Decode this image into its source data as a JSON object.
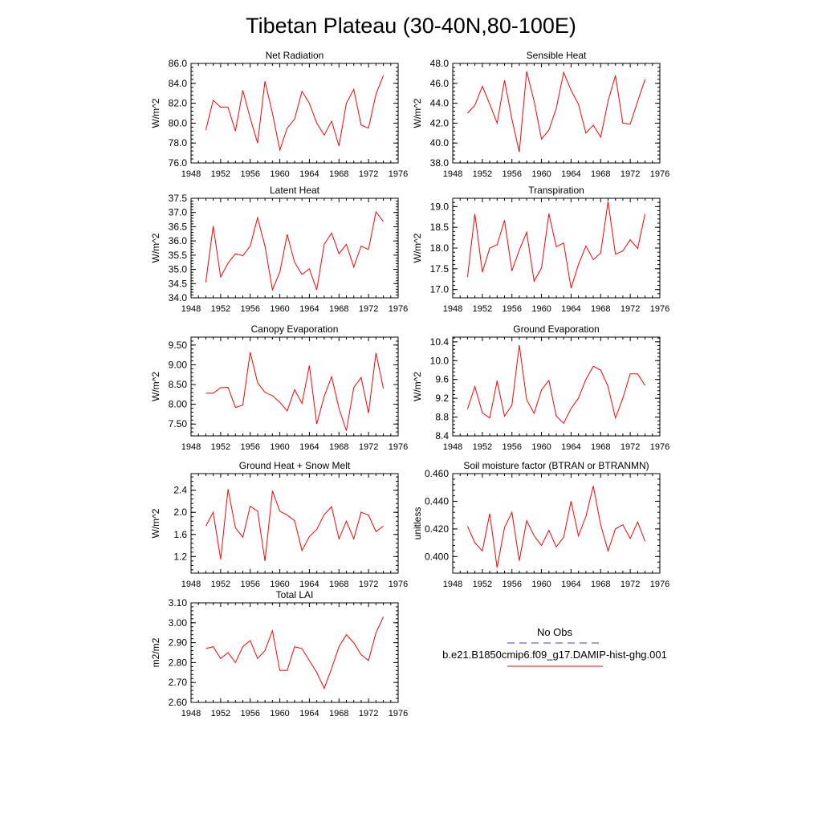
{
  "figure": {
    "title": "Tibetan Plateau (30-40N,80-100E)"
  },
  "legend": {
    "obs_label": "No Obs",
    "obs_color": "#3b3bdb",
    "model_label": "b.e21.B1850cmip6.f09_g17.DAMIP-hist-ghg.001",
    "model_color": "#ff0000"
  },
  "chart_data": [
    {
      "type": "line",
      "title": "Net Radiation",
      "ylabel": "W/m^2",
      "xlim": [
        1948,
        1976
      ],
      "ylim": [
        76,
        86
      ],
      "xticks": [
        "1948",
        "1952",
        "1956",
        "1960",
        "1964",
        "1968",
        "1972",
        "1976"
      ],
      "yticks": [
        "76.0",
        "78.0",
        "80.0",
        "82.0",
        "84.0",
        "86.0"
      ],
      "series": [
        {
          "x": [
            1950,
            1951,
            1952,
            1953,
            1954,
            1955,
            1956,
            1957,
            1958,
            1959,
            1960,
            1961,
            1962,
            1963,
            1964,
            1965,
            1966,
            1967,
            1968,
            1969,
            1970,
            1971,
            1972,
            1973,
            1974
          ],
          "values": [
            79.3,
            82.3,
            81.6,
            81.6,
            79.2,
            83.3,
            80.5,
            78.0,
            84.2,
            81.0,
            77.3,
            79.5,
            80.4,
            83.2,
            82.0,
            80.0,
            78.8,
            80.2,
            77.7,
            82.0,
            83.4,
            79.8,
            79.5,
            82.9,
            84.8
          ]
        }
      ]
    },
    {
      "type": "line",
      "title": "Sensible Heat",
      "ylabel": "W/m^2",
      "xlim": [
        1948,
        1976
      ],
      "ylim": [
        38,
        48
      ],
      "xticks": [
        "1948",
        "1952",
        "1956",
        "1960",
        "1964",
        "1968",
        "1972",
        "1976"
      ],
      "yticks": [
        "38.0",
        "40.0",
        "42.0",
        "44.0",
        "46.0",
        "48.0"
      ],
      "series": [
        {
          "x": [
            1950,
            1951,
            1952,
            1953,
            1954,
            1955,
            1956,
            1957,
            1958,
            1959,
            1960,
            1961,
            1962,
            1963,
            1964,
            1965,
            1966,
            1967,
            1968,
            1969,
            1970,
            1971,
            1972,
            1973,
            1974
          ],
          "values": [
            43.0,
            43.8,
            45.7,
            43.9,
            42.0,
            46.3,
            42.4,
            39.1,
            47.2,
            44.2,
            40.4,
            41.3,
            43.5,
            47.1,
            45.3,
            43.9,
            41.0,
            41.8,
            40.6,
            44.2,
            46.8,
            42.0,
            41.9,
            44.2,
            46.4
          ]
        }
      ]
    },
    {
      "type": "line",
      "title": "Latent Heat",
      "ylabel": "W/m^2",
      "xlim": [
        1948,
        1976
      ],
      "ylim": [
        34,
        37.5
      ],
      "xticks": [
        "1948",
        "1952",
        "1956",
        "1960",
        "1964",
        "1968",
        "1972",
        "1976"
      ],
      "yticks": [
        "34.0",
        "34.5",
        "35.0",
        "35.5",
        "36.0",
        "36.5",
        "37.0",
        "37.5"
      ],
      "series": [
        {
          "x": [
            1950,
            1951,
            1952,
            1953,
            1954,
            1955,
            1956,
            1957,
            1958,
            1959,
            1960,
            1961,
            1962,
            1963,
            1964,
            1965,
            1966,
            1967,
            1968,
            1969,
            1970,
            1971,
            1972,
            1973,
            1974
          ],
          "values": [
            34.55,
            36.52,
            34.73,
            35.22,
            35.55,
            35.48,
            35.82,
            36.82,
            35.82,
            34.28,
            34.9,
            36.23,
            35.25,
            34.82,
            35.02,
            34.28,
            35.88,
            36.28,
            35.55,
            35.88,
            35.08,
            35.82,
            35.7,
            37.02,
            36.68
          ]
        }
      ]
    },
    {
      "type": "line",
      "title": "Transpiration",
      "ylabel": "W/m^2",
      "xlim": [
        1948,
        1976
      ],
      "ylim": [
        16.8,
        19.2
      ],
      "xticks": [
        "1948",
        "1952",
        "1956",
        "1960",
        "1964",
        "1968",
        "1972",
        "1976"
      ],
      "yticks": [
        "17.0",
        "17.5",
        "18.0",
        "18.5",
        "19.0"
      ],
      "series": [
        {
          "x": [
            1950,
            1951,
            1952,
            1953,
            1954,
            1955,
            1956,
            1957,
            1958,
            1959,
            1960,
            1961,
            1962,
            1963,
            1964,
            1965,
            1966,
            1967,
            1968,
            1969,
            1970,
            1971,
            1972,
            1973,
            1974
          ],
          "values": [
            17.3,
            18.82,
            17.42,
            18.0,
            18.08,
            18.67,
            17.45,
            17.95,
            18.38,
            17.2,
            17.52,
            18.83,
            18.03,
            18.12,
            17.03,
            17.6,
            18.05,
            17.72,
            17.88,
            19.12,
            17.85,
            17.93,
            18.2,
            17.99,
            18.82
          ]
        }
      ]
    },
    {
      "type": "line",
      "title": "Canopy Evaporation",
      "ylabel": "W/m^2",
      "xlim": [
        1948,
        1976
      ],
      "ylim": [
        7.2,
        9.7
      ],
      "xticks": [
        "1948",
        "1952",
        "1956",
        "1960",
        "1964",
        "1968",
        "1972",
        "1976"
      ],
      "yticks": [
        "7.50",
        "8.00",
        "8.50",
        "9.00",
        "9.50"
      ],
      "series": [
        {
          "x": [
            1950,
            1951,
            1952,
            1953,
            1954,
            1955,
            1956,
            1957,
            1958,
            1959,
            1960,
            1961,
            1962,
            1963,
            1964,
            1965,
            1966,
            1967,
            1968,
            1969,
            1970,
            1971,
            1972,
            1973,
            1974
          ],
          "values": [
            8.28,
            8.28,
            8.42,
            8.43,
            7.92,
            7.98,
            9.32,
            8.55,
            8.3,
            8.22,
            8.05,
            7.83,
            8.37,
            8.02,
            8.98,
            7.5,
            8.2,
            8.7,
            7.9,
            7.33,
            8.42,
            8.68,
            7.78,
            9.3,
            8.4
          ]
        }
      ]
    },
    {
      "type": "line",
      "title": "Ground Evaporation",
      "ylabel": "W/m^2",
      "xlim": [
        1948,
        1976
      ],
      "ylim": [
        8.4,
        10.5
      ],
      "xticks": [
        "1948",
        "1952",
        "1956",
        "1960",
        "1964",
        "1968",
        "1972",
        "1976"
      ],
      "yticks": [
        "8.4",
        "8.8",
        "9.2",
        "9.6",
        "10.0",
        "10.4"
      ],
      "series": [
        {
          "x": [
            1950,
            1951,
            1952,
            1953,
            1954,
            1955,
            1956,
            1957,
            1958,
            1959,
            1960,
            1961,
            1962,
            1963,
            1964,
            1965,
            1966,
            1967,
            1968,
            1969,
            1970,
            1971,
            1972,
            1973,
            1974
          ],
          "values": [
            8.97,
            9.45,
            8.89,
            8.78,
            9.57,
            8.82,
            9.05,
            10.33,
            9.17,
            8.88,
            9.38,
            9.58,
            8.82,
            8.67,
            8.98,
            9.2,
            9.6,
            9.88,
            9.8,
            9.45,
            8.78,
            9.2,
            9.72,
            9.72,
            9.47
          ]
        }
      ]
    },
    {
      "type": "line",
      "title": "Ground Heat + Snow Melt",
      "ylabel": "W/m^2",
      "xlim": [
        1948,
        1976
      ],
      "ylim": [
        0.9,
        2.7
      ],
      "xticks": [
        "1948",
        "1952",
        "1956",
        "1960",
        "1964",
        "1968",
        "1972",
        "1976"
      ],
      "yticks": [
        "1.2",
        "1.6",
        "2.0",
        "2.4"
      ],
      "series": [
        {
          "x": [
            1950,
            1951,
            1952,
            1953,
            1954,
            1955,
            1956,
            1957,
            1958,
            1959,
            1960,
            1961,
            1962,
            1963,
            1964,
            1965,
            1966,
            1967,
            1968,
            1969,
            1970,
            1971,
            1972,
            1973,
            1974
          ],
          "values": [
            1.75,
            2.0,
            1.15,
            2.42,
            1.72,
            1.55,
            2.11,
            2.02,
            1.12,
            2.39,
            2.02,
            1.95,
            1.85,
            1.31,
            1.56,
            1.69,
            1.96,
            2.1,
            1.52,
            1.84,
            1.52,
            2.0,
            1.95,
            1.65,
            1.75
          ]
        }
      ]
    },
    {
      "type": "line",
      "title": "Soil moisture factor (BTRAN or BTRANMN)",
      "ylabel": "unitless",
      "xlim": [
        1948,
        1976
      ],
      "ylim": [
        0.388,
        0.46
      ],
      "xticks": [
        "1948",
        "1952",
        "1956",
        "1960",
        "1964",
        "1968",
        "1972",
        "1976"
      ],
      "yticks": [
        "0.400",
        "0.420",
        "0.440",
        "0.460"
      ],
      "series": [
        {
          "x": [
            1950,
            1951,
            1952,
            1953,
            1954,
            1955,
            1956,
            1957,
            1958,
            1959,
            1960,
            1961,
            1962,
            1963,
            1964,
            1965,
            1966,
            1967,
            1968,
            1969,
            1970,
            1971,
            1972,
            1973,
            1974
          ],
          "values": [
            0.422,
            0.41,
            0.404,
            0.431,
            0.392,
            0.421,
            0.432,
            0.397,
            0.426,
            0.415,
            0.408,
            0.419,
            0.407,
            0.414,
            0.44,
            0.415,
            0.429,
            0.451,
            0.423,
            0.404,
            0.42,
            0.423,
            0.413,
            0.425,
            0.411
          ]
        }
      ]
    },
    {
      "type": "line",
      "title": "Total LAI",
      "ylabel": "m2/m2",
      "xlim": [
        1948,
        1976
      ],
      "ylim": [
        2.6,
        3.1
      ],
      "xticks": [
        "1948",
        "1952",
        "1956",
        "1960",
        "1964",
        "1968",
        "1972",
        "1976"
      ],
      "yticks": [
        "2.60",
        "2.70",
        "2.80",
        "2.90",
        "3.00",
        "3.10"
      ],
      "series": [
        {
          "x": [
            1950,
            1951,
            1952,
            1953,
            1954,
            1955,
            1956,
            1957,
            1958,
            1959,
            1960,
            1961,
            1962,
            1963,
            1964,
            1965,
            1966,
            1967,
            1968,
            1969,
            1970,
            1971,
            1972,
            1973,
            1974
          ],
          "values": [
            2.87,
            2.88,
            2.82,
            2.85,
            2.8,
            2.88,
            2.91,
            2.82,
            2.86,
            2.96,
            2.76,
            2.76,
            2.88,
            2.87,
            2.81,
            2.75,
            2.67,
            2.77,
            2.88,
            2.94,
            2.9,
            2.84,
            2.81,
            2.95,
            3.03
          ]
        }
      ]
    }
  ]
}
